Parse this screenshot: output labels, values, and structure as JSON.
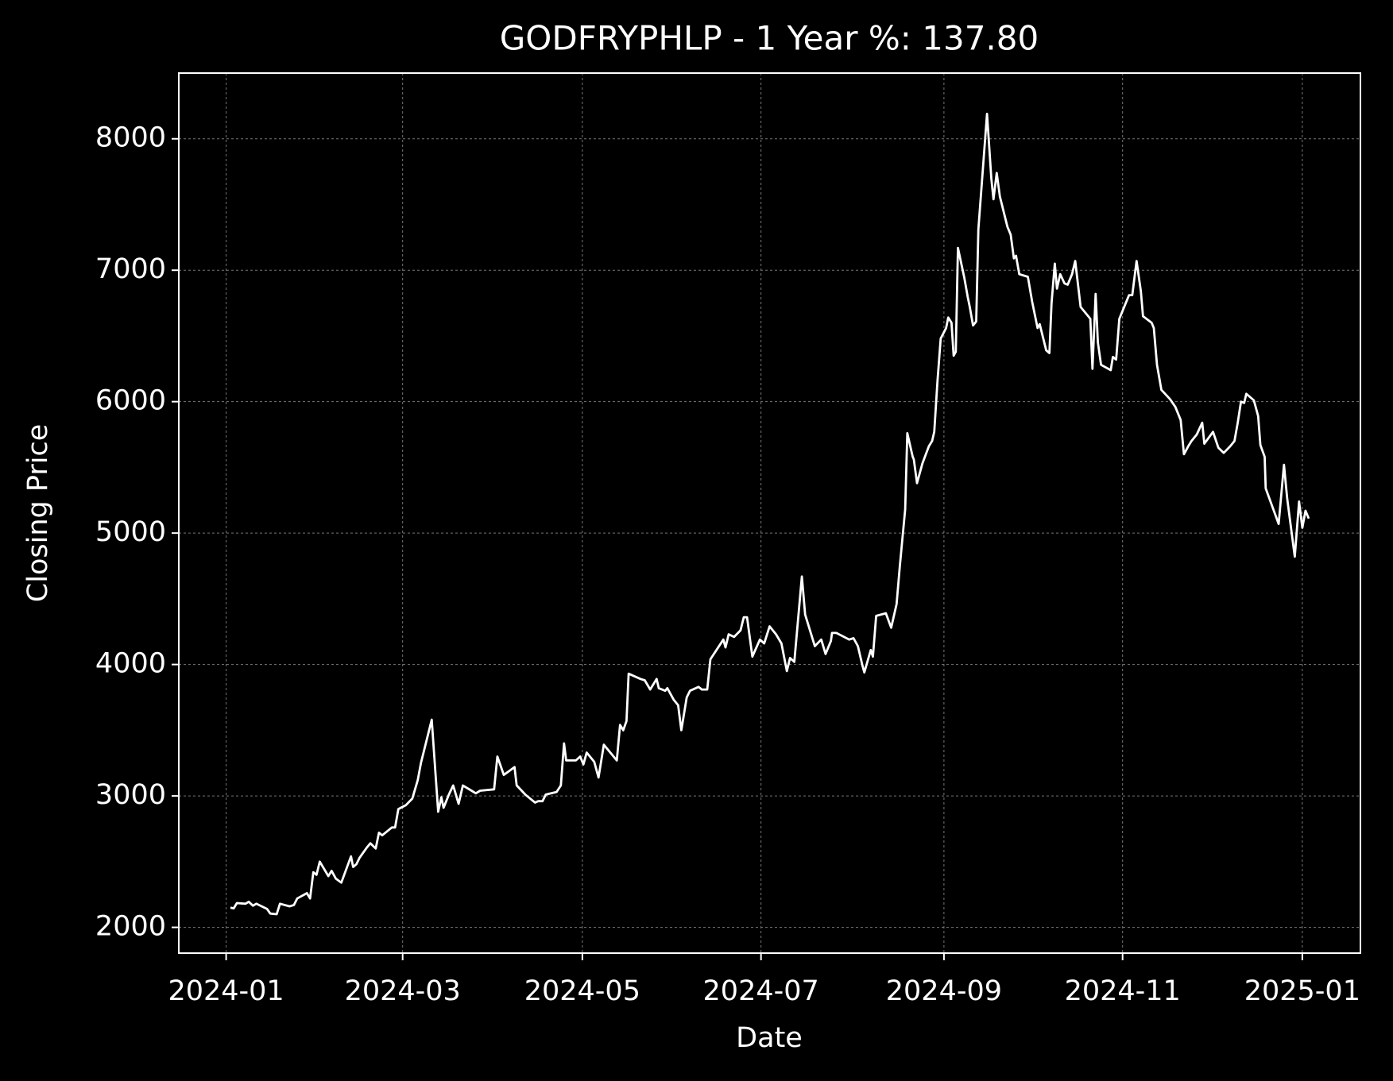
{
  "chart_data": {
    "type": "line",
    "title": "GODFRYPHLP - 1 Year %: 137.80",
    "xlabel": "Date",
    "ylabel": "Closing Price",
    "xlim": [
      2023.956,
      2025.054
    ],
    "ylim": [
      1804,
      8500
    ],
    "xticks": [
      {
        "value": 2024,
        "label": "2024-01"
      },
      {
        "value": 2024.164,
        "label": "2024-03"
      },
      {
        "value": 2024.331,
        "label": "2024-05"
      },
      {
        "value": 2024.497,
        "label": "2024-07"
      },
      {
        "value": 2024.667,
        "label": "2024-09"
      },
      {
        "value": 2024.833,
        "label": "2024-11"
      },
      {
        "value": 2025,
        "label": "2025-01"
      }
    ],
    "yticks": [
      2000,
      3000,
      4000,
      5000,
      6000,
      7000,
      8000
    ],
    "grid": true,
    "series": [
      {
        "color": "#ffffff",
        "x": [
          2024.004,
          2024.007,
          2024.01,
          2024.018,
          2024.021,
          2024.025,
          2024.028,
          2024.038,
          2024.041,
          2024.047,
          2024.05,
          2024.059,
          2024.063,
          2024.066,
          2024.075,
          2024.078,
          2024.081,
          2024.084,
          2024.087,
          2024.095,
          2024.098,
          2024.102,
          2024.107,
          2024.116,
          2024.118,
          2024.121,
          2024.124,
          2024.131,
          2024.134,
          2024.139,
          2024.142,
          2024.145,
          2024.154,
          2024.157,
          2024.16,
          2024.167,
          2024.173,
          2024.178,
          2024.181,
          2024.191,
          2024.197,
          2024.2,
          2024.202,
          2024.207,
          2024.211,
          2024.216,
          2024.22,
          2024.228,
          2024.232,
          2024.236,
          2024.249,
          2024.252,
          2024.258,
          2024.263,
          2024.268,
          2024.27,
          2024.278,
          2024.287,
          2024.29,
          2024.294,
          2024.297,
          2024.307,
          2024.311,
          2024.314,
          2024.316,
          2024.325,
          2024.329,
          2024.332,
          2024.335,
          2024.342,
          2024.346,
          2024.351,
          2024.363,
          2024.366,
          2024.369,
          2024.372,
          2024.374,
          2024.385,
          2024.389,
          2024.394,
          2024.4,
          2024.402,
          2024.408,
          2024.41,
          2024.416,
          2024.42,
          2024.423,
          2024.428,
          2024.431,
          2024.439,
          2024.442,
          2024.447,
          2024.45,
          2024.462,
          2024.464,
          2024.467,
          2024.472,
          2024.478,
          2024.481,
          2024.484,
          2024.489,
          2024.496,
          2024.5,
          2024.505,
          2024.511,
          2024.516,
          2024.521,
          2024.524,
          2024.528,
          2024.535,
          2024.538,
          2024.547,
          2024.553,
          2024.557,
          2024.562,
          2024.563,
          2024.567,
          2024.579,
          2024.583,
          2024.587,
          2024.591,
          2024.593,
          2024.599,
          2024.601,
          2024.604,
          2024.613,
          2024.618,
          2024.623,
          2024.626,
          2024.631,
          2024.633,
          2024.638,
          2024.639,
          2024.642,
          2024.647,
          2024.653,
          2024.656,
          2024.658,
          2024.661,
          2024.664,
          2024.669,
          2024.671,
          2024.674,
          2024.676,
          2024.678,
          2024.68,
          2024.686,
          2024.689,
          2024.691,
          2024.694,
          2024.697,
          2024.699,
          2024.707,
          2024.711,
          2024.713,
          2024.716,
          2024.719,
          2024.726,
          2024.729,
          2024.732,
          2024.734,
          2024.737,
          2024.745,
          2024.749,
          2024.754,
          2024.756,
          2024.762,
          2024.765,
          2024.767,
          2024.77,
          2024.772,
          2024.775,
          2024.779,
          2024.782,
          2024.786,
          2024.789,
          2024.794,
          2024.799,
          2024.803,
          2024.805,
          2024.808,
          2024.81,
          2024.813,
          2024.822,
          2024.824,
          2024.827,
          2024.83,
          2024.839,
          2024.842,
          2024.846,
          2024.85,
          2024.852,
          2024.86,
          2024.862,
          2024.865,
          2024.869,
          2024.877,
          2024.882,
          2024.887,
          2024.89,
          2024.894,
          2024.897,
          2024.902,
          2024.907,
          2024.909,
          2024.917,
          2024.922,
          2024.927,
          2024.933,
          2024.937,
          2024.94,
          2024.943,
          2024.946,
          2024.948,
          2024.955,
          2024.959,
          2024.961,
          2024.965,
          2024.966,
          2024.978,
          2024.983,
          2024.986,
          2024.993,
          2024.997,
          2025.0,
          2025.003,
          2025.006
        ],
        "values": [
          2150,
          2145,
          2185,
          2180,
          2195,
          2165,
          2180,
          2140,
          2105,
          2100,
          2180,
          2160,
          2170,
          2220,
          2260,
          2220,
          2420,
          2400,
          2500,
          2390,
          2430,
          2370,
          2340,
          2540,
          2460,
          2480,
          2530,
          2610,
          2640,
          2600,
          2720,
          2700,
          2760,
          2760,
          2900,
          2930,
          2980,
          3120,
          3250,
          3580,
          2880,
          2990,
          2910,
          3010,
          3080,
          2940,
          3080,
          3040,
          3020,
          3040,
          3050,
          3300,
          3160,
          3190,
          3220,
          3080,
          3010,
          2950,
          2960,
          2960,
          3010,
          3030,
          3080,
          3400,
          3270,
          3270,
          3300,
          3240,
          3330,
          3260,
          3140,
          3390,
          3270,
          3540,
          3500,
          3570,
          3930,
          3890,
          3880,
          3810,
          3890,
          3820,
          3800,
          3820,
          3730,
          3690,
          3500,
          3750,
          3800,
          3830,
          3810,
          3810,
          4040,
          4190,
          4130,
          4230,
          4210,
          4260,
          4360,
          4360,
          4060,
          4190,
          4160,
          4290,
          4230,
          4160,
          3950,
          4050,
          4020,
          4670,
          4380,
          4140,
          4190,
          4080,
          4180,
          4240,
          4240,
          4190,
          4200,
          4140,
          4000,
          3940,
          4110,
          4060,
          4370,
          4390,
          4280,
          4460,
          4750,
          5180,
          5760,
          5580,
          5560,
          5380,
          5530,
          5660,
          5700,
          5770,
          6160,
          6480,
          6560,
          6640,
          6600,
          6350,
          6380,
          7170,
          6940,
          6800,
          6720,
          6580,
          6610,
          7310,
          8190,
          7700,
          7540,
          7740,
          7560,
          7330,
          7270,
          7090,
          7110,
          6970,
          6950,
          6760,
          6560,
          6590,
          6390,
          6370,
          6750,
          7050,
          6860,
          6970,
          6900,
          6890,
          6970,
          7070,
          6720,
          6670,
          6630,
          6250,
          6820,
          6450,
          6280,
          6240,
          6340,
          6320,
          6630,
          6810,
          6810,
          7070,
          6840,
          6650,
          6600,
          6560,
          6280,
          6090,
          6020,
          5960,
          5860,
          5600,
          5660,
          5700,
          5750,
          5840,
          5680,
          5770,
          5650,
          5610,
          5660,
          5700,
          5840,
          6000,
          5990,
          6060,
          6010,
          5890,
          5670,
          5580,
          5340,
          5070,
          5520,
          5260,
          4820,
          5240,
          5040,
          5170,
          5110
        ]
      }
    ]
  }
}
